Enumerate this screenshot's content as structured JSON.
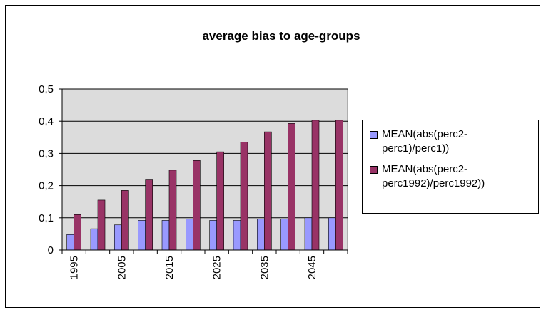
{
  "chart_data": {
    "type": "bar",
    "title": "average bias to age-groups",
    "categories": [
      "1995",
      null,
      "2005",
      null,
      "2015",
      null,
      "2025",
      null,
      "2035",
      null,
      "2045",
      null
    ],
    "series": [
      {
        "name": "MEAN(abs(perc2-perc1)/perc1))",
        "color": "#9999ff",
        "values": [
          0.048,
          0.066,
          0.078,
          0.092,
          0.092,
          0.096,
          0.092,
          0.092,
          0.096,
          0.096,
          0.1,
          0.1
        ]
      },
      {
        "name": "MEAN(abs(perc2-perc1992)/perc1992))",
        "color": "#993366",
        "values": [
          0.11,
          0.155,
          0.185,
          0.22,
          0.248,
          0.278,
          0.305,
          0.335,
          0.367,
          0.393,
          0.403,
          0.403
        ]
      }
    ],
    "ylim": [
      0,
      0.5
    ],
    "yticks": [
      0,
      {
        "value": 0.1,
        "label": "0,1"
      },
      {
        "value": 0.2,
        "label": "0,2"
      },
      {
        "value": 0.3,
        "label": "0,3"
      },
      {
        "value": 0.4,
        "label": "0,4"
      },
      {
        "value": 0.5,
        "label": "0,5"
      }
    ],
    "grid": true,
    "plot_background": "#dcdcdc"
  }
}
